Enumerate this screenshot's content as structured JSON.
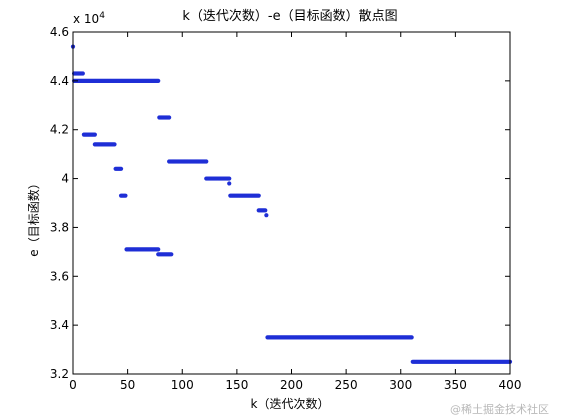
{
  "chart_data": {
    "type": "scatter",
    "title": "k（迭代次数）-e（目标函数）散点图",
    "xlabel": "k（迭代次数）",
    "ylabel": "e（目标函数）",
    "y_multiplier_label": "x 10",
    "y_multiplier_exponent": "4",
    "xlim": [
      0,
      400
    ],
    "ylim": [
      3.2,
      4.6
    ],
    "x_ticks": [
      0,
      50,
      100,
      150,
      200,
      250,
      300,
      350,
      400
    ],
    "x_tick_labels": [
      "0",
      "50",
      "100",
      "150",
      "200",
      "250",
      "300",
      "350",
      "400"
    ],
    "y_ticks": [
      3.2,
      3.4,
      3.6,
      3.8,
      4.0,
      4.2,
      4.4,
      4.6
    ],
    "y_tick_labels": [
      "3.2",
      "3.4",
      "3.6",
      "3.8",
      "4",
      "4.2",
      "4.4",
      "4.6"
    ],
    "grid": false,
    "marker_color": "#1f2fd6",
    "segments": [
      {
        "x_start": 0,
        "x_end": 0,
        "y": 4.54
      },
      {
        "x_start": 1,
        "x_end": 9,
        "y": 4.43
      },
      {
        "x_start": 1,
        "x_end": 78,
        "y": 4.4
      },
      {
        "x_start": 10,
        "x_end": 20,
        "y": 4.18
      },
      {
        "x_start": 20,
        "x_end": 38,
        "y": 4.14
      },
      {
        "x_start": 39,
        "x_end": 44,
        "y": 4.04
      },
      {
        "x_start": 44,
        "x_end": 48,
        "y": 3.93
      },
      {
        "x_start": 49,
        "x_end": 78,
        "y": 3.71
      },
      {
        "x_start": 78,
        "x_end": 90,
        "y": 3.69
      },
      {
        "x_start": 79,
        "x_end": 88,
        "y": 4.25
      },
      {
        "x_start": 88,
        "x_end": 122,
        "y": 4.07
      },
      {
        "x_start": 122,
        "x_end": 143,
        "y": 4.0
      },
      {
        "x_start": 143,
        "x_end": 143,
        "y": 3.98
      },
      {
        "x_start": 144,
        "x_end": 170,
        "y": 3.93
      },
      {
        "x_start": 170,
        "x_end": 176,
        "y": 3.87
      },
      {
        "x_start": 177,
        "x_end": 177,
        "y": 3.85
      },
      {
        "x_start": 178,
        "x_end": 310,
        "y": 3.35
      },
      {
        "x_start": 311,
        "x_end": 400,
        "y": 3.25
      }
    ]
  },
  "watermark": "@稀土掘金技术社区"
}
